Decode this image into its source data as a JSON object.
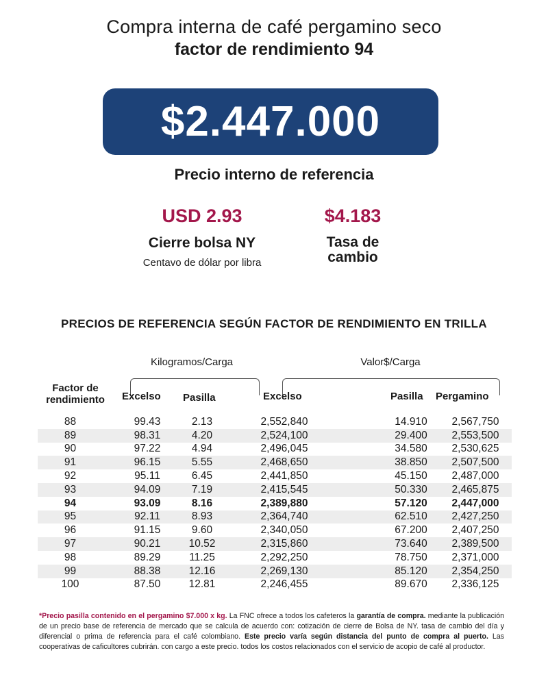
{
  "header": {
    "title_line1": "Compra interna de café pergamino seco",
    "title_line2": "factor de rendimiento 94"
  },
  "main_price": {
    "value": "$2.447.000",
    "caption": "Precio interno de referencia",
    "box_color": "#1d4278"
  },
  "bolsa": {
    "value": "USD 2.93",
    "label": "Cierre bolsa NY",
    "sublabel": "Centavo de dólar por libra"
  },
  "tasa": {
    "value": "$4.183",
    "label_line1": "Tasa de",
    "label_line2": "cambio"
  },
  "accent_color": "#a3174b",
  "table": {
    "title": "PRECIOS DE REFERENCIA SEGÚN FACTOR DE RENDIMIENTO EN TRILLA",
    "group_kg": "Kilogramos/Carga",
    "group_valor": "Valor$/Carga",
    "headers": {
      "factor_line1": "Factor de",
      "factor_line2": "rendimiento",
      "excelso_kg": "Excelso",
      "pasilla_kg": "Pasilla",
      "excelso_val": "Excelso",
      "pasilla_val": "Pasilla",
      "pergamino": "Pergamino"
    },
    "rows": [
      {
        "factor": "88",
        "excelso_kg": "99.43",
        "pasilla_kg": "2.13",
        "excelso_val": "2,552,840",
        "pasilla_val": "14.910",
        "pergamino": "2,567,750"
      },
      {
        "factor": "89",
        "excelso_kg": "98.31",
        "pasilla_kg": "4.20",
        "excelso_val": "2,524,100",
        "pasilla_val": "29.400",
        "pergamino": "2,553,500"
      },
      {
        "factor": "90",
        "excelso_kg": "97.22",
        "pasilla_kg": "4.94",
        "excelso_val": "2,496,045",
        "pasilla_val": "34.580",
        "pergamino": "2,530,625"
      },
      {
        "factor": "91",
        "excelso_kg": "96.15",
        "pasilla_kg": "5.55",
        "excelso_val": "2,468,650",
        "pasilla_val": "38.850",
        "pergamino": "2,507,500"
      },
      {
        "factor": "92",
        "excelso_kg": "95.11",
        "pasilla_kg": "6.45",
        "excelso_val": "2,441,850",
        "pasilla_val": "45.150",
        "pergamino": "2,487,000"
      },
      {
        "factor": "93",
        "excelso_kg": "94.09",
        "pasilla_kg": "7.19",
        "excelso_val": "2,415,545",
        "pasilla_val": "50.330",
        "pergamino": "2,465,875"
      },
      {
        "factor": "94",
        "excelso_kg": "93.09",
        "pasilla_kg": "8.16",
        "excelso_val": "2,389,880",
        "pasilla_val": "57.120",
        "pergamino": "2,447,000"
      },
      {
        "factor": "95",
        "excelso_kg": "92.11",
        "pasilla_kg": "8.93",
        "excelso_val": "2,364,740",
        "pasilla_val": "62.510",
        "pergamino": "2,427,250"
      },
      {
        "factor": "96",
        "excelso_kg": "91.15",
        "pasilla_kg": "9.60",
        "excelso_val": "2,340,050",
        "pasilla_val": "67.200",
        "pergamino": "2,407,250"
      },
      {
        "factor": "97",
        "excelso_kg": "90.21",
        "pasilla_kg": "10.52",
        "excelso_val": "2,315,860",
        "pasilla_val": "73.640",
        "pergamino": "2,389,500"
      },
      {
        "factor": "98",
        "excelso_kg": "89.29",
        "pasilla_kg": "11.25",
        "excelso_val": "2,292,250",
        "pasilla_val": "78.750",
        "pergamino": "2,371,000"
      },
      {
        "factor": "99",
        "excelso_kg": "88.38",
        "pasilla_kg": "12.16",
        "excelso_val": "2,269,130",
        "pasilla_val": "85.120",
        "pergamino": "2,354,250"
      },
      {
        "factor": "100",
        "excelso_kg": "87.50",
        "pasilla_kg": "12.81",
        "excelso_val": "2,246,455",
        "pasilla_val": "89.670",
        "pergamino": "2,336,125"
      }
    ]
  },
  "footnote": {
    "part1": "*Precio pasilla contenido en el pergamino $7.000 x kg.",
    "part2": " La FNC ofrece a todos los cafeteros la ",
    "part3": "garantía de compra.",
    "part4": " mediante la publicación de un precio base de referencia de mercado que se calcula de acuerdo con: cotización de cierre de Bolsa de NY. tasa de cambio del día y diferencial o prima de referencia para el café colombiano. ",
    "part5": "Este precio varía según distancia del punto de compra al puerto.",
    "part6": " Las cooperativas de caficultores cubrirán. con cargo a este precio. todos los costos relacionados con el servicio de acopio de café al productor."
  }
}
